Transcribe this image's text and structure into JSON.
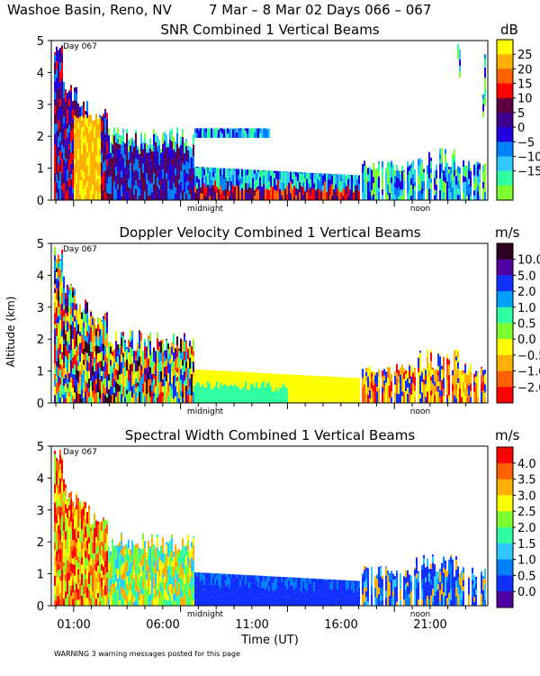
{
  "header": {
    "location": "Washoe Basin, Reno, NV",
    "dates": "7 Mar –  8 Mar 02 Days 066 – 067"
  },
  "y_label": "Altitude (km)",
  "x_label": "Time (UT)",
  "warning": "WARNING  3 warning messages posted for this page",
  "day_tag": "Day 067",
  "markers": {
    "midnight": "midnight",
    "noon": "noon"
  },
  "chart_data": [
    {
      "type": "heatmap",
      "title": "SNR Combined 1 Vertical Beams",
      "unit": "dB",
      "ylim": [
        0,
        5
      ],
      "yticks": [
        "0",
        "1",
        "2",
        "3",
        "4",
        "5"
      ],
      "colorbar_labels": [
        "25",
        "20",
        "15",
        "10",
        "5",
        "0",
        "−5",
        "−10",
        "−15"
      ],
      "colors": [
        "#ffff00",
        "#ffb000",
        "#ff6000",
        "#ff0000",
        "#600040",
        "#400090",
        "#2000e0",
        "#0080ff",
        "#30c8ff",
        "#30ffa0",
        "#80ff30"
      ]
    },
    {
      "type": "heatmap",
      "title": "Doppler Velocity Combined 1 Vertical Beams",
      "unit": "m/s",
      "ylim": [
        0,
        5
      ],
      "yticks": [
        "0",
        "1",
        "2",
        "3",
        "4",
        "5"
      ],
      "colorbar_labels": [
        "10.0",
        "5.0",
        "2.0",
        "1.0",
        "0.5",
        "0.0",
        "−0.5",
        "−1.0",
        "−2.0"
      ],
      "colors": [
        "#300020",
        "#5000a0",
        "#1030ff",
        "#00a0ff",
        "#30ffa0",
        "#80ff30",
        "#ffff00",
        "#ffb000",
        "#ff6000",
        "#ff0000"
      ]
    },
    {
      "type": "heatmap",
      "title": "Spectral Width Combined 1 Vertical Beams",
      "unit": "m/s",
      "ylim": [
        0,
        5
      ],
      "yticks": [
        "0",
        "1",
        "2",
        "3",
        "4",
        "5"
      ],
      "colorbar_labels": [
        "4.0",
        "3.5",
        "3.0",
        "2.5",
        "2.0",
        "1.5",
        "1.0",
        "0.5",
        "0.0"
      ],
      "colors": [
        "#ff0000",
        "#ff6000",
        "#ffb000",
        "#ffff00",
        "#80ff30",
        "#30ffa0",
        "#30c8ff",
        "#0080ff",
        "#1030ff",
        "#5000a0"
      ]
    }
  ],
  "time_axis": {
    "tick_labels": [
      "01:00",
      "06:00",
      "11:00",
      "16:00",
      "21:00"
    ]
  }
}
